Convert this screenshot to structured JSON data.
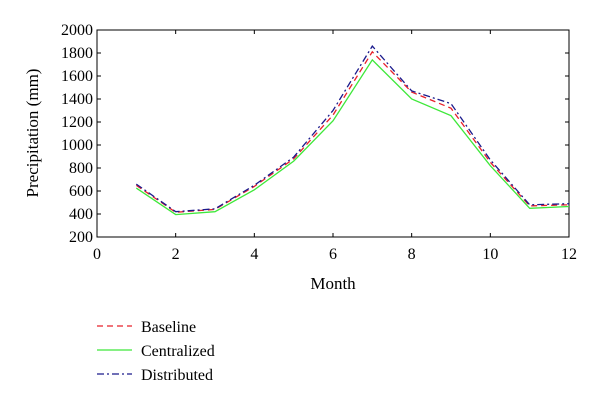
{
  "chart_data": {
    "type": "line",
    "xlabel": "Month",
    "ylabel": "Precipitation (mm)",
    "xlim": [
      0,
      12
    ],
    "ylim": [
      200,
      2000
    ],
    "x_ticks": [
      "0",
      "2",
      "4",
      "6",
      "8",
      "10",
      "12"
    ],
    "y_ticks": [
      "200",
      "400",
      "600",
      "800",
      "1000",
      "1200",
      "1400",
      "1600",
      "1800",
      "2000"
    ],
    "grid": false,
    "legend_position": "bottom-left outside",
    "x": [
      1,
      2,
      3,
      4,
      5,
      6,
      7,
      8,
      9,
      10,
      11,
      12
    ],
    "series": [
      {
        "name": "Baseline",
        "style": "dashed",
        "color": "#e8202a",
        "values": [
          650,
          415,
          440,
          640,
          880,
          1260,
          1810,
          1460,
          1320,
          850,
          470,
          480
        ]
      },
      {
        "name": "Centralized",
        "style": "solid",
        "color": "#3ee83a",
        "values": [
          625,
          395,
          420,
          610,
          860,
          1210,
          1740,
          1400,
          1255,
          820,
          450,
          465
        ]
      },
      {
        "name": "Distributed",
        "style": "dashdot",
        "color": "#1a1a8c",
        "values": [
          660,
          420,
          445,
          650,
          895,
          1300,
          1860,
          1470,
          1360,
          870,
          480,
          490
        ]
      }
    ]
  }
}
